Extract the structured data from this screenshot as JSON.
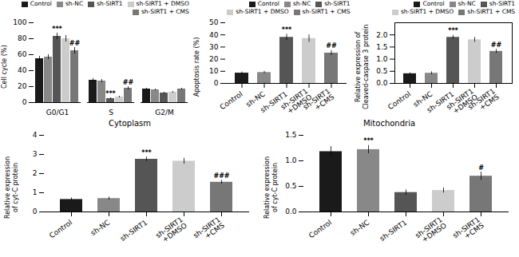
{
  "chart_data": [
    {
      "type": "bar",
      "ylabel": "Cell cycle (%)",
      "categories": [
        "G0/G1",
        "S",
        "G2/M"
      ],
      "series": [
        {
          "name": "Control",
          "color": "#1a1a1a",
          "values": [
            55,
            28,
            17
          ],
          "errors": [
            3,
            2,
            1
          ]
        },
        {
          "name": "sh-NC",
          "color": "#888888",
          "values": [
            57,
            27,
            16
          ],
          "errors": [
            3,
            2,
            1
          ]
        },
        {
          "name": "sh-SIRT1",
          "color": "#555555",
          "values": [
            83,
            5,
            12
          ],
          "errors": [
            4,
            1,
            1
          ]
        },
        {
          "name": "sh-SIRT1 + DMSO",
          "color": "#cccccc",
          "values": [
            80,
            7,
            13
          ],
          "errors": [
            4,
            1,
            1
          ]
        },
        {
          "name": "sh-SIRT1 + CMS",
          "color": "#777777",
          "values": [
            65,
            18,
            17
          ],
          "errors": [
            4,
            2,
            1
          ]
        }
      ],
      "annotations": [
        {
          "category": "G0/G1",
          "series": "sh-SIRT1",
          "text": "***"
        },
        {
          "category": "G0/G1",
          "series": "sh-SIRT1 + CMS",
          "text": "##"
        },
        {
          "category": "S",
          "series": "sh-SIRT1",
          "text": "***"
        },
        {
          "category": "S",
          "series": "sh-SIRT1 + CMS",
          "text": "##"
        }
      ],
      "ylim": [
        0,
        100
      ],
      "yticks": [
        0,
        20,
        40,
        60,
        80,
        100
      ],
      "legend": "upper right"
    },
    {
      "type": "bar",
      "ylabel": "Apoptosis rate (%)",
      "categories": [
        "Control",
        "sh-NC",
        "sh-SIRT1",
        "sh-SIRT1\n+DMSO",
        "sh-SIRT1\n+CMS"
      ],
      "values": [
        8.5,
        9.0,
        38.0,
        37.0,
        25.0
      ],
      "errors": [
        1.0,
        1.0,
        2.5,
        3.0,
        2.0
      ],
      "colors": [
        "#1a1a1a",
        "#888888",
        "#555555",
        "#cccccc",
        "#777777"
      ],
      "legend_labels": [
        "Control",
        "sh-NC",
        "sh-SIRT1",
        "sh-SIRT1 + DMSO",
        "sh-SIRT1 + CMS"
      ],
      "annotations": [
        {
          "category": "sh-SIRT1",
          "text": "***"
        },
        {
          "category": "sh-SIRT1\n+CMS",
          "text": "##"
        }
      ],
      "ylim": [
        0,
        50
      ],
      "yticks": [
        0,
        10,
        20,
        30,
        40,
        50
      ],
      "legend": "upper right"
    },
    {
      "type": "bar",
      "ylabel": "Relative expression of\nCleaved-caspase 3 protein",
      "categories": [
        "Control",
        "sh-NC",
        "sh-SIRT1",
        "sh-SIRT1\n+DMSO",
        "sh-SIRT1\n+CMS"
      ],
      "values": [
        0.4,
        0.42,
        1.9,
        1.8,
        1.32
      ],
      "errors": [
        0.04,
        0.06,
        0.08,
        0.1,
        0.08
      ],
      "colors": [
        "#1a1a1a",
        "#888888",
        "#555555",
        "#cccccc",
        "#777777"
      ],
      "legend_labels": [
        "Control",
        "sh-NC",
        "sh-SIRT1",
        "sh-SIRT1 + DMSO",
        "sh-SIRT1 + CMS"
      ],
      "annotations": [
        {
          "category": "sh-SIRT1",
          "text": "***"
        },
        {
          "category": "sh-SIRT1\n+CMS",
          "text": "##"
        }
      ],
      "ylim": [
        0,
        2.5
      ],
      "yticks": [
        {
          "value": 0,
          "label": "0.0"
        },
        0.5,
        {
          "value": 1,
          "label": "1.0"
        },
        1.5,
        {
          "value": 2,
          "label": "2.0"
        }
      ],
      "legend": "upper right"
    },
    {
      "type": "bar",
      "title": "Cytoplasm",
      "ylabel": "Relative expression\nof cyt-C protein",
      "categories": [
        "Control",
        "sh-NC",
        "sh-SIRT1",
        "sh-SIRT1\n+DMSO",
        "sh-SIRT1\n+CMS"
      ],
      "values": [
        0.65,
        0.7,
        2.75,
        2.65,
        1.55
      ],
      "errors": [
        0.08,
        0.08,
        0.12,
        0.15,
        0.1
      ],
      "colors": [
        "#1a1a1a",
        "#888888",
        "#555555",
        "#cccccc",
        "#777777"
      ],
      "annotations": [
        {
          "category": "sh-SIRT1",
          "text": "***"
        },
        {
          "category": "sh-SIRT1\n+CMS",
          "text": "###"
        }
      ],
      "ylim": [
        0,
        4
      ],
      "yticks": [
        0,
        1,
        2,
        3,
        4
      ]
    },
    {
      "type": "bar",
      "title": "Mitochondria",
      "ylabel": "Relative expression\nof cyt-C protein",
      "categories": [
        "Control",
        "sh-NC",
        "sh-SIRT1",
        "sh-SIRT1\n+DMSO",
        "sh-SIRT1\n+CMS"
      ],
      "values": [
        1.18,
        1.22,
        0.38,
        0.42,
        0.7
      ],
      "errors": [
        0.1,
        0.08,
        0.05,
        0.05,
        0.08
      ],
      "colors": [
        "#1a1a1a",
        "#888888",
        "#555555",
        "#cccccc",
        "#777777"
      ],
      "annotations": [
        {
          "category": "sh-NC",
          "text": "***"
        },
        {
          "category": "sh-SIRT1\n+CMS",
          "text": "#"
        }
      ],
      "ylim": [
        0,
        1.5
      ],
      "yticks": [
        {
          "value": 0,
          "label": "0.0"
        },
        0.5,
        {
          "value": 1,
          "label": "1.0"
        },
        1.5
      ]
    }
  ]
}
